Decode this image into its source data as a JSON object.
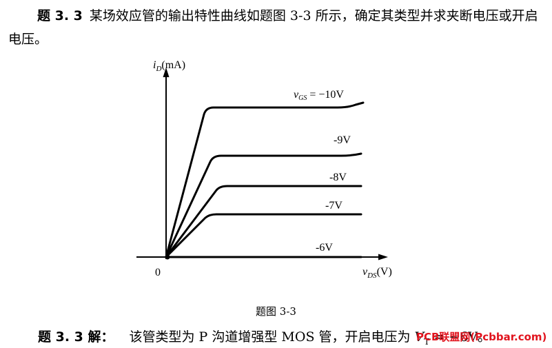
{
  "problem": {
    "label": "题 3. 3",
    "text": "某场效应管的输出特性曲线如题图 3-3 所示，确定其类型并求夹断电压或开启电压。"
  },
  "figure": {
    "y_axis_label": {
      "var": "i",
      "sub": "D",
      "unit": "(mA)"
    },
    "x_axis_label": {
      "var": "v",
      "sub": "DS",
      "unit": "(V)"
    },
    "origin_label": "0",
    "caption": "题图 3-3",
    "curves": [
      {
        "name": "vgs-minus-10",
        "label_var": "v",
        "label_sub": "GS",
        "label_value": " = −10V"
      },
      {
        "name": "vgs-minus-9",
        "label_value": "-9V"
      },
      {
        "name": "vgs-minus-8",
        "label_value": "-8V"
      },
      {
        "name": "vgs-minus-7",
        "label_value": "-7V"
      },
      {
        "name": "vgs-minus-6",
        "label_value": "-6V"
      }
    ]
  },
  "answer": {
    "label": "题 3. 3 解：",
    "text": "该管类型为 P 沟道增强型 MOS 管，开启电压为 ",
    "symbol": "V",
    "symbol_sub": "T",
    "value": " = −6V。"
  },
  "watermark": "PCB联盟网(Pcbbar.com)"
}
